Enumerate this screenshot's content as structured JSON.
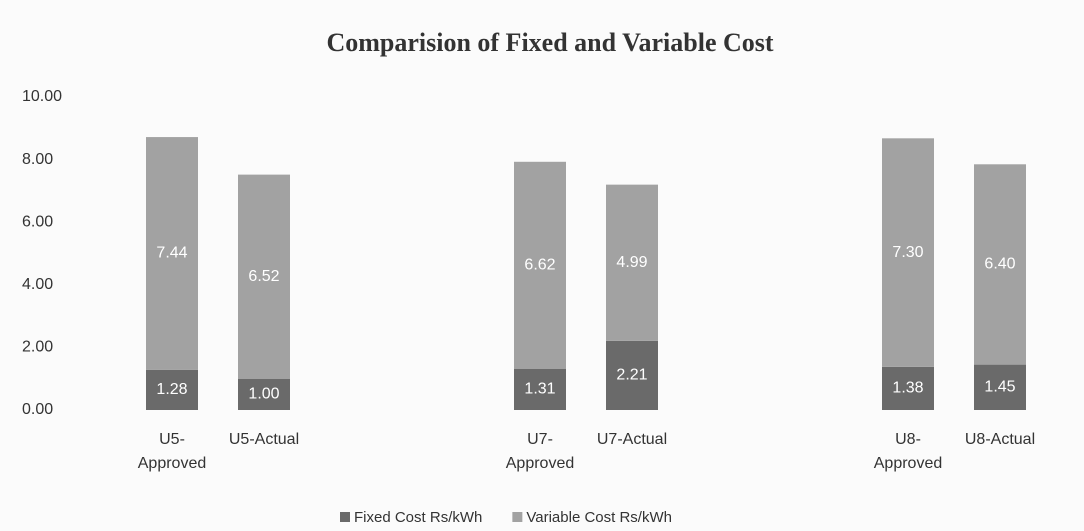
{
  "chart_data": {
    "type": "bar",
    "stacked": true,
    "title": "Comparision of Fixed and Variable Cost",
    "categories": [
      "U5-\nApproved",
      "U5-Actual",
      null,
      null,
      "U7-\nApproved",
      "U7-Actual",
      null,
      null,
      "U8-\nApproved",
      "U8-Actual"
    ],
    "series": [
      {
        "name": "Fixed Cost Rs/kWh",
        "color": "#6a6a6a",
        "values": [
          1.28,
          1.0,
          null,
          null,
          1.31,
          2.21,
          null,
          null,
          1.38,
          1.45
        ],
        "value_labels": [
          "1.28",
          "1.00",
          null,
          null,
          "1.31",
          "2.21",
          null,
          null,
          "1.38",
          "1.45"
        ]
      },
      {
        "name": "Variable Cost Rs/kWh",
        "color": "#a2a2a2",
        "values": [
          7.44,
          6.52,
          null,
          null,
          6.62,
          4.99,
          null,
          null,
          7.3,
          6.4
        ],
        "value_labels": [
          "7.44",
          "6.52",
          null,
          null,
          "6.62",
          "4.99",
          null,
          null,
          "7.30",
          "6.40"
        ]
      }
    ],
    "ylim": [
      0,
      10
    ],
    "yticks": [
      {
        "value": 0,
        "label": "0.00"
      },
      {
        "value": 2,
        "label": "2.00"
      },
      {
        "value": 4,
        "label": "4.00"
      },
      {
        "value": 6,
        "label": "6.00"
      },
      {
        "value": 8,
        "label": "8.00"
      },
      {
        "value": 10,
        "label": "10.00"
      }
    ],
    "legend": "bottom"
  }
}
